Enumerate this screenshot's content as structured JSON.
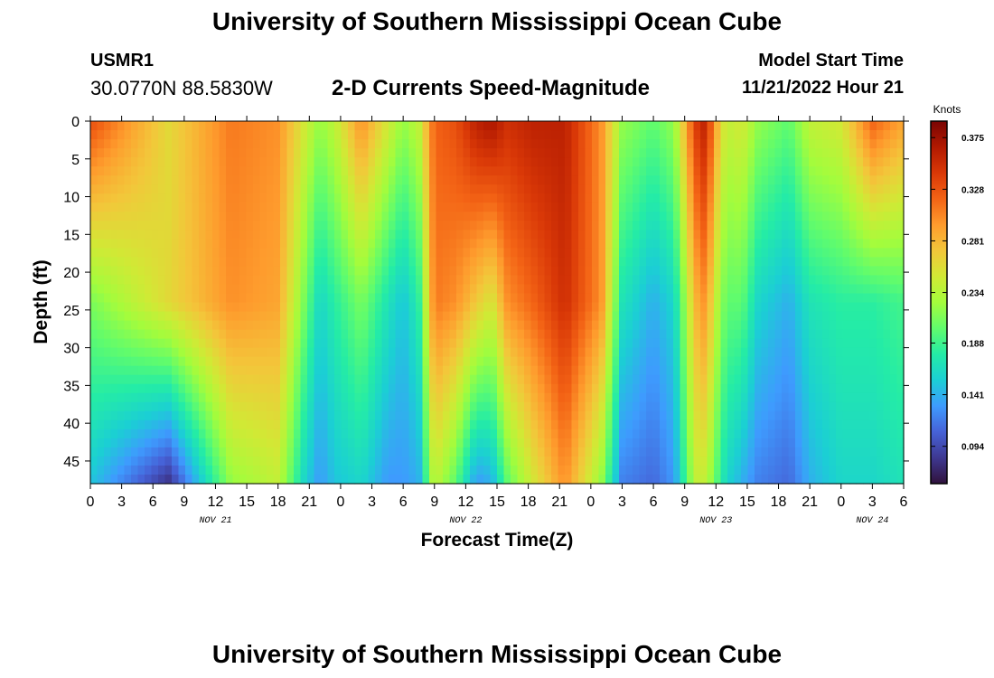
{
  "header": {
    "title": "University of Southern Mississippi Ocean Cube",
    "station_id": "USMR1",
    "coordinates": "30.0770N  88.5830W",
    "subtitle": "2-D Currents Speed-Magnitude",
    "model_start_label": "Model Start Time",
    "model_start_value": "11/21/2022 Hour 21"
  },
  "footer": {
    "title": "University of Southern Mississippi Ocean Cube"
  },
  "chart_data": {
    "type": "heatmap",
    "title": "2-D Currents Speed-Magnitude",
    "xlabel": "Forecast Time(Z)",
    "ylabel": "Depth (ft)",
    "x_range_hours": [
      0,
      78
    ],
    "x_ticks": [
      "0",
      "3",
      "6",
      "9",
      "12",
      "15",
      "18",
      "21",
      "0",
      "3",
      "6",
      "9",
      "12",
      "15",
      "18",
      "21",
      "0",
      "3",
      "6",
      "9",
      "12",
      "15",
      "18",
      "21",
      "0",
      "3",
      "6"
    ],
    "date_labels": [
      {
        "label": "NOV 21",
        "hour": 12
      },
      {
        "label": "NOV 22",
        "hour": 36
      },
      {
        "label": "NOV 23",
        "hour": 60
      },
      {
        "label": "NOV 24",
        "hour": 75
      }
    ],
    "y_ticks": [
      0,
      5,
      10,
      15,
      20,
      25,
      30,
      35,
      40,
      45
    ],
    "ylim": [
      0,
      48
    ],
    "colorbar": {
      "label": "Knots",
      "ticks": [
        "0.375",
        "0.328",
        "0.281",
        "0.234",
        "0.188",
        "0.141",
        "0.094"
      ],
      "range": [
        0.06,
        0.39
      ]
    },
    "palette": [
      "#30123b",
      "#3e3891",
      "#4662d7",
      "#3e9bfe",
      "#1bcfd4",
      "#24eca6",
      "#61fc6c",
      "#a4fc3c",
      "#d1e935",
      "#f3c63a",
      "#fe9b2d",
      "#f36315",
      "#d93807",
      "#b11901",
      "#7a0403"
    ],
    "column_profiles": {
      "hour_breakpoints": [
        0,
        7.5,
        13.5,
        18,
        20.5,
        22,
        23.5,
        26,
        28.5,
        30,
        31.5,
        33,
        35,
        37,
        38.5,
        40,
        42.5,
        45.5,
        49,
        51,
        54,
        56,
        58,
        59,
        60,
        61,
        62.5,
        64,
        67,
        69,
        72,
        75,
        78
      ],
      "surface_knots": [
        0.33,
        0.26,
        0.31,
        0.3,
        0.25,
        0.22,
        0.24,
        0.3,
        0.25,
        0.22,
        0.24,
        0.32,
        0.33,
        0.36,
        0.37,
        0.35,
        0.36,
        0.36,
        0.3,
        0.22,
        0.2,
        0.22,
        0.34,
        0.36,
        0.29,
        0.24,
        0.25,
        0.22,
        0.2,
        0.24,
        0.25,
        0.32,
        0.29
      ],
      "mid_knots": [
        0.21,
        0.26,
        0.3,
        0.29,
        0.21,
        0.16,
        0.18,
        0.21,
        0.17,
        0.15,
        0.18,
        0.31,
        0.3,
        0.27,
        0.25,
        0.3,
        0.32,
        0.35,
        0.3,
        0.17,
        0.14,
        0.16,
        0.28,
        0.3,
        0.24,
        0.2,
        0.2,
        0.16,
        0.14,
        0.17,
        0.18,
        0.18,
        0.19
      ],
      "bottom_knots": [
        0.15,
        0.08,
        0.22,
        0.24,
        0.16,
        0.13,
        0.15,
        0.16,
        0.13,
        0.13,
        0.14,
        0.24,
        0.2,
        0.13,
        0.14,
        0.2,
        0.25,
        0.3,
        0.22,
        0.12,
        0.11,
        0.13,
        0.24,
        0.24,
        0.2,
        0.16,
        0.14,
        0.12,
        0.11,
        0.14,
        0.16,
        0.16,
        0.17
      ]
    }
  }
}
